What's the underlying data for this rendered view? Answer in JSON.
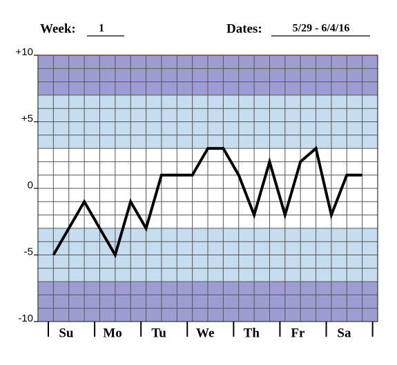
{
  "chart_data": {
    "type": "line",
    "week_label": "Week:",
    "week": "1",
    "dates_label": "Dates:",
    "dates": "5/29 - 6/4/16",
    "categories": [
      null,
      "Su",
      null,
      null,
      "Mo",
      null,
      null,
      "Tu",
      null,
      null,
      "We",
      null,
      null,
      "Th",
      null,
      null,
      "Fr",
      null,
      null,
      "Sa",
      null
    ],
    "values": [
      -5,
      -3,
      -1,
      -3,
      -5,
      -1,
      -3,
      1,
      1,
      1,
      3,
      3,
      1,
      -2,
      2,
      -2,
      2,
      3,
      -2,
      1,
      1
    ],
    "color": "#000000",
    "ylim": [
      -10,
      10
    ],
    "yticks": [
      {
        "value": 10,
        "label": "+10"
      },
      {
        "value": 5,
        "label": "+5"
      },
      0,
      -5,
      -10
    ],
    "bands": [
      {
        "from": -10,
        "to": -7,
        "color": "#9d9dd2"
      },
      {
        "from": -7,
        "to": -3,
        "color": "#c6dcef"
      },
      {
        "from": -3,
        "to": 3,
        "color": "#ffffff"
      },
      {
        "from": 3,
        "to": 7,
        "color": "#c6dcef"
      },
      {
        "from": 7,
        "to": 10,
        "color": "#9d9dd2"
      }
    ],
    "grid": true
  }
}
